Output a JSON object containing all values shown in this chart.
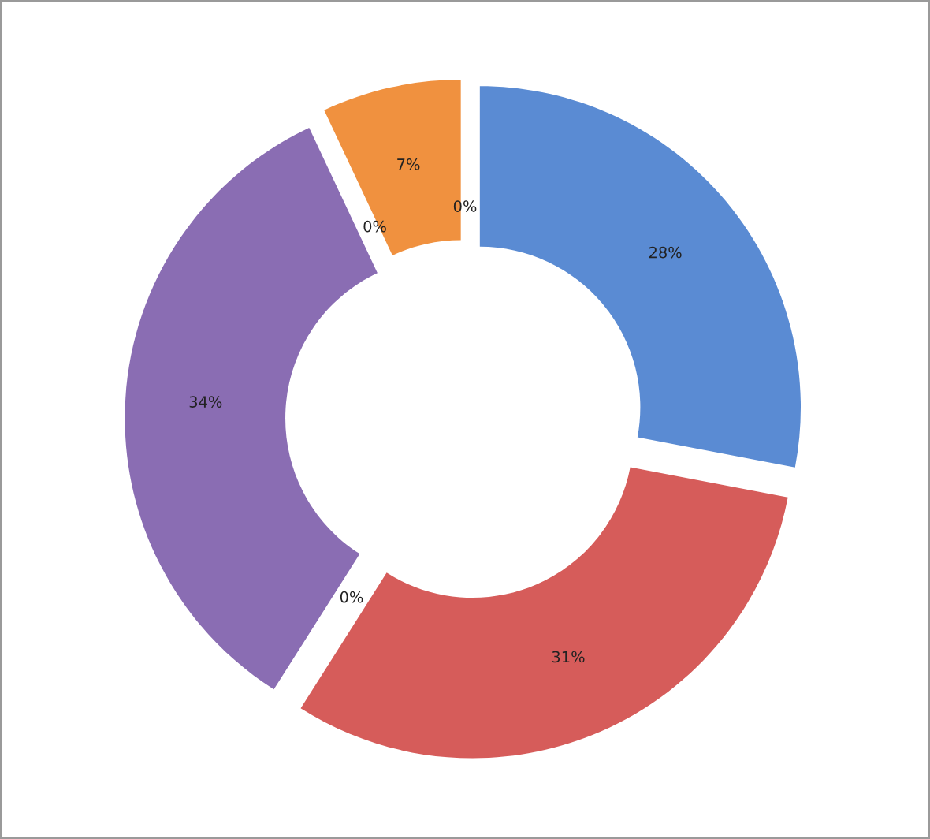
{
  "chart_data": {
    "type": "donut",
    "categories": [
      null,
      null,
      null,
      null,
      null,
      null,
      null
    ],
    "values": [
      28,
      31,
      0,
      34,
      0,
      7,
      0
    ],
    "value_labels": [
      "28%",
      "31%",
      "0%",
      "34%",
      "0%",
      "7%",
      "0%"
    ],
    "colors": [
      "#5a8bd3",
      "#d65c5a",
      "#9bbb59",
      "#8a6db3",
      "#4bacc6",
      "#f0913f",
      "#7f7f7f"
    ],
    "legend": false
  }
}
